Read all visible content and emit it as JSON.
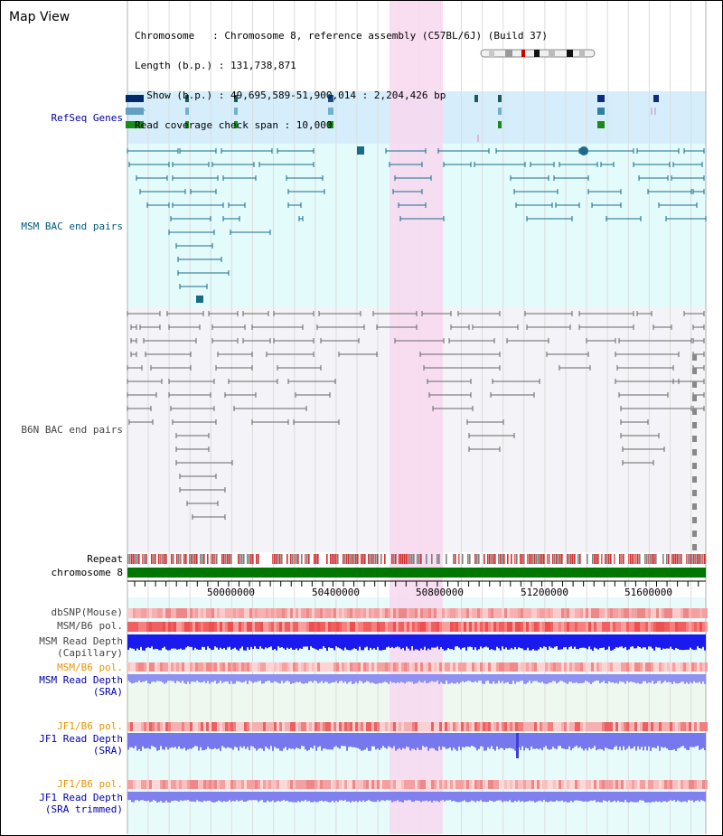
{
  "view": {
    "title": "Map View",
    "info_lines": [
      "Chromosome   : Chromosome 8, reference assembly (C57BL/6J) (Build 37)",
      "Length (b.p.) : 131,738,871",
      "  Show (b.p.) : 49,695,589-51,900,014 : 2,204,426 bp",
      "Read coverage check span : 10,000"
    ]
  },
  "tracks": {
    "refseq": "RefSeq Genes",
    "msm_bac": "MSM BAC end pairs",
    "b6n_bac": "B6N BAC end pairs",
    "repeat": "Repeat",
    "chromosome": "chromosome 8",
    "dbsnp": "dbSNP(Mouse)",
    "msm_b6_pol": "MSM/B6 pol.",
    "msm_depth_cap_1": "MSM Read Depth",
    "msm_depth_cap_2": "(Capillary)",
    "msm_b6_pol_2": "MSM/B6 pol.",
    "msm_depth_sra_1": "MSM Read Depth",
    "msm_depth_sra_2": "(SRA)",
    "jf1_b6_pol": "JF1/B6 pol.",
    "jf1_depth_sra_1": "JF1 Read Depth",
    "jf1_depth_sra_2": "(SRA)",
    "jf1_b6_pol_2": "JF1/B6 pol.",
    "jf1_depth_trim_1": "JF1 Read Depth",
    "jf1_depth_trim_2": "(SRA trimmed)"
  },
  "axis": {
    "ticks": [
      "50000000",
      "50400000",
      "50800000",
      "51200000",
      "51600000"
    ]
  },
  "colors": {
    "refseq_bg": "#d6eefb",
    "msm_bg": "#e4fbfb",
    "b6n_bg": "#f4f4f8",
    "highlight": "#f8d8f0",
    "chromosome_bar": "#007700",
    "msm_feature": "#1a6a8a",
    "b6n_feature": "#666666"
  }
}
